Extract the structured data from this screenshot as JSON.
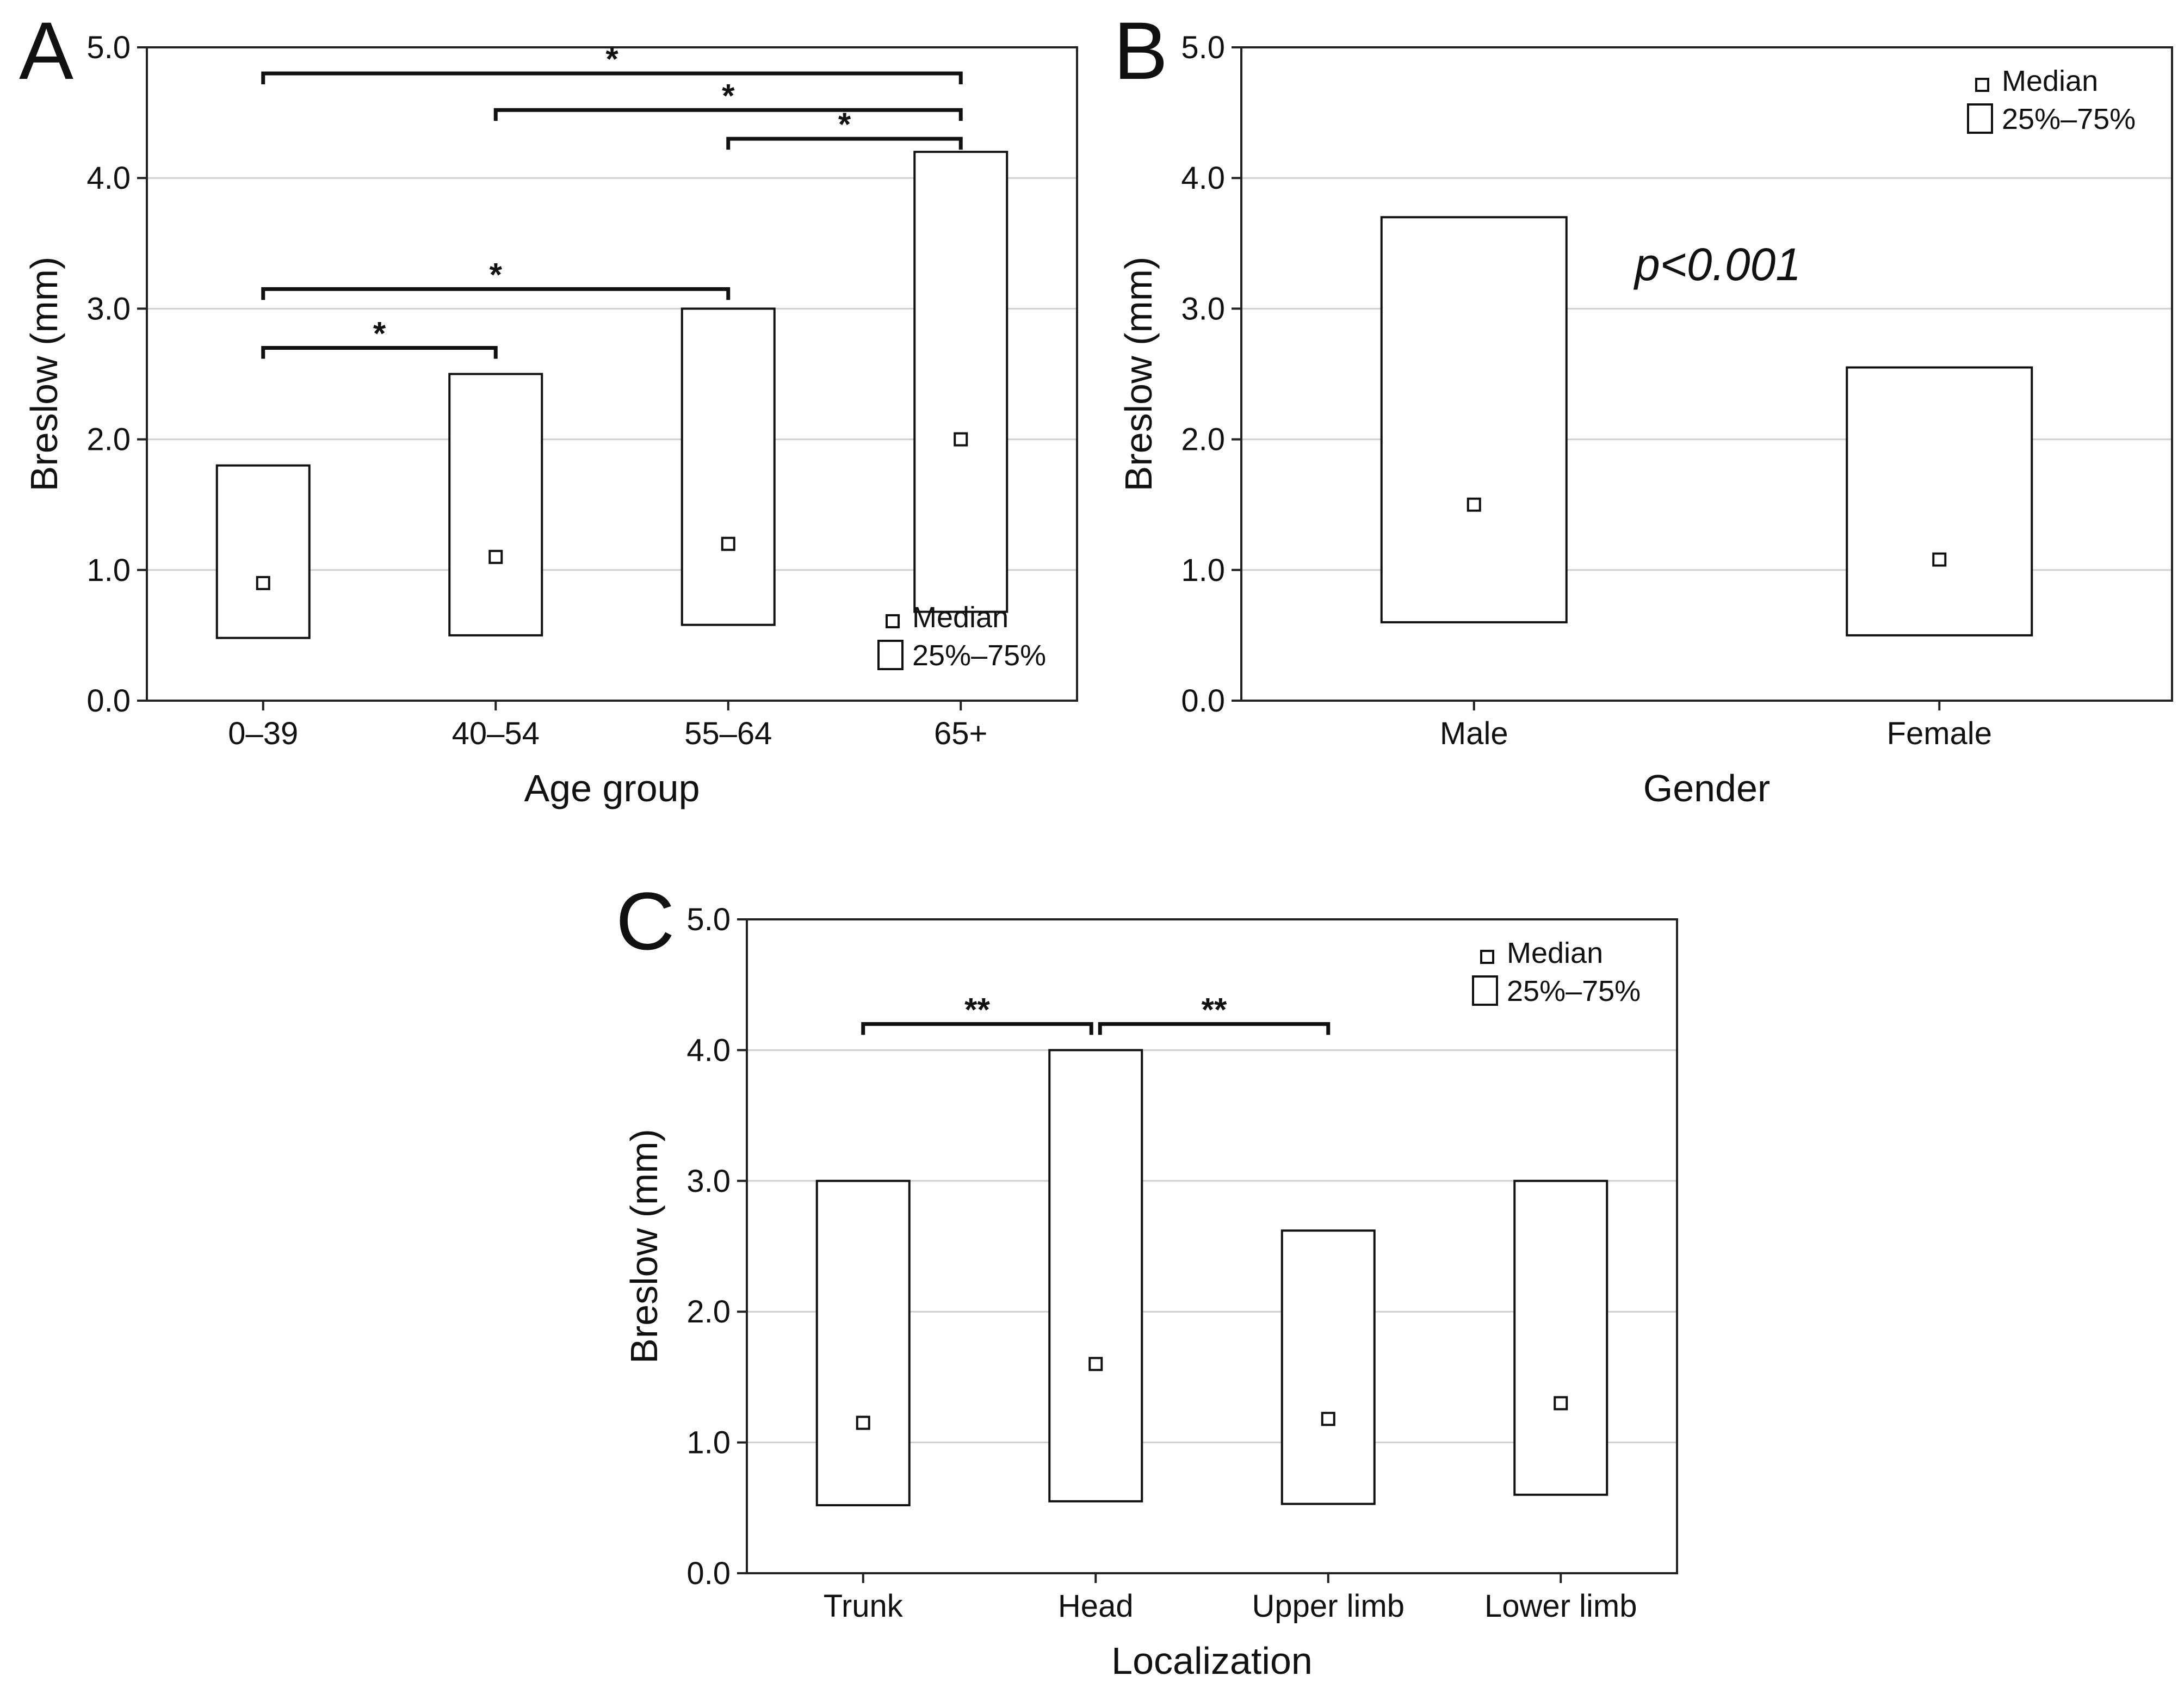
{
  "figure": {
    "panels": [
      "A",
      "B",
      "C"
    ],
    "median_glyph": "small-square-icon",
    "iqr_glyph": "rectangle-icon"
  },
  "chart_data": [
    {
      "panel": "A",
      "type": "box",
      "categories": [
        "0–39",
        "40–54",
        "55–64",
        "65+"
      ],
      "series": [
        {
          "name": "Median",
          "values": [
            0.9,
            1.1,
            1.2,
            2.0
          ]
        },
        {
          "name": "25%–75%",
          "q1": [
            0.48,
            0.5,
            0.58,
            0.68
          ],
          "q3": [
            1.8,
            2.5,
            3.0,
            4.2
          ]
        }
      ],
      "xlabel": "Age group",
      "ylabel": "Breslow (mm)",
      "ylim": [
        0,
        5
      ],
      "yticks": [
        "0.0",
        "1.0",
        "2.0",
        "3.0",
        "4.0",
        "5.0"
      ],
      "grid": true,
      "legend": {
        "position": "bottom-right",
        "items": [
          "Median",
          "25%–75%"
        ]
      },
      "annotations": [
        {
          "from": 0,
          "to": 1,
          "y": 2.7,
          "label": "*"
        },
        {
          "from": 0,
          "to": 2,
          "y": 3.15,
          "label": "*"
        },
        {
          "from": 2,
          "to": 3,
          "y": 4.3,
          "label": "*"
        },
        {
          "from": 1,
          "to": 3,
          "y": 4.52,
          "label": "*"
        },
        {
          "from": 0,
          "to": 3,
          "y": 4.8,
          "label": "*"
        }
      ]
    },
    {
      "panel": "B",
      "type": "box",
      "categories": [
        "Male",
        "Female"
      ],
      "series": [
        {
          "name": "Median",
          "values": [
            1.5,
            1.08
          ]
        },
        {
          "name": "25%–75%",
          "q1": [
            0.6,
            0.5
          ],
          "q3": [
            3.7,
            2.55
          ]
        }
      ],
      "xlabel": "Gender",
      "ylabel": "Breslow (mm)",
      "ylim": [
        0,
        5
      ],
      "yticks": [
        "0.0",
        "1.0",
        "2.0",
        "3.0",
        "4.0",
        "5.0"
      ],
      "grid": true,
      "legend": {
        "position": "top-right",
        "items": [
          "Median",
          "25%–75%"
        ]
      },
      "text_annotation": "p<0.001"
    },
    {
      "panel": "C",
      "type": "box",
      "categories": [
        "Trunk",
        "Head",
        "Upper limb",
        "Lower limb"
      ],
      "series": [
        {
          "name": "Median",
          "values": [
            1.15,
            1.6,
            1.18,
            1.3
          ]
        },
        {
          "name": "25%–75%",
          "q1": [
            0.52,
            0.55,
            0.53,
            0.6
          ],
          "q3": [
            3.0,
            4.0,
            2.62,
            3.0
          ]
        }
      ],
      "xlabel": "Localization",
      "ylabel": "Breslow (mm)",
      "ylim": [
        0,
        5
      ],
      "yticks": [
        "0.0",
        "1.0",
        "2.0",
        "3.0",
        "4.0",
        "5.0"
      ],
      "grid": true,
      "legend": {
        "position": "top-right",
        "items": [
          "Median",
          "25%–75%"
        ]
      },
      "annotations": [
        {
          "from": 0,
          "to": 1,
          "y": 4.2,
          "label": "**"
        },
        {
          "from": 1,
          "to": 2,
          "y": 4.2,
          "label": "**"
        }
      ]
    }
  ]
}
